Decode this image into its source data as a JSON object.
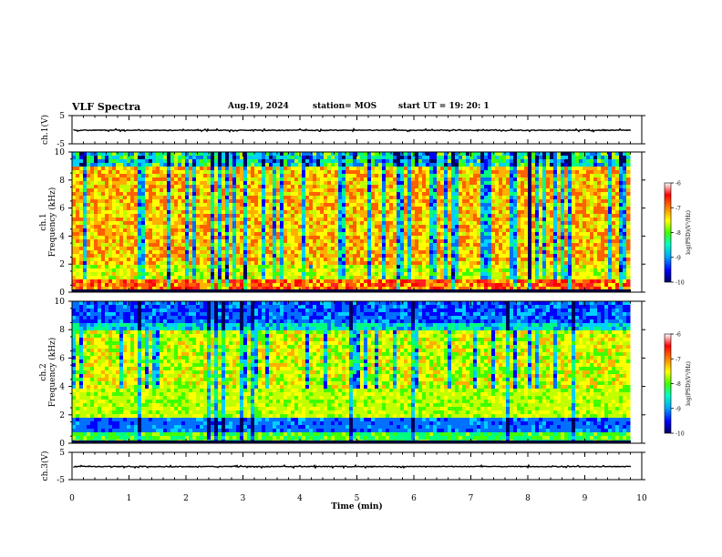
{
  "header": {
    "title": "VLF Spectra",
    "date": "Aug.19, 2024",
    "station": "station= MOS",
    "start": "start  UT =   19: 20: 1"
  },
  "colors": {
    "scale": [
      "#000060",
      "#0000ff",
      "#0070ff",
      "#00d0ff",
      "#00ff80",
      "#40ff00",
      "#c0ff00",
      "#ffff00",
      "#ffb000",
      "#ff6000",
      "#ff2020",
      "#ff0000"
    ],
    "trace": "#000000",
    "background": "#ffffff"
  },
  "chart_data": [
    {
      "type": "line",
      "name": "ch1-waveform",
      "ylabel": "ch.1(V)",
      "ylim": [
        -5,
        5
      ],
      "yticks": [
        "5",
        "-5"
      ],
      "level": -0.2,
      "xlim": [
        0,
        10
      ]
    },
    {
      "type": "heatmap",
      "name": "ch1-spectrogram",
      "ylabel": "ch.1 Frequency (kHz)",
      "ylabel_line1": "ch.1",
      "ylabel_line2": "Frequency (kHz)",
      "ylim": [
        0,
        10
      ],
      "yticks": [
        "0",
        "2",
        "4",
        "6",
        "8",
        "10"
      ],
      "xlim": [
        0,
        9.8
      ],
      "dominant_band_khz": [
        2,
        9
      ],
      "colorbar": {
        "label": "log(PSD)(V²/Hz)",
        "min": -10,
        "max": -6,
        "ticks": [
          "-6",
          "-7",
          "-8",
          "-9",
          "-10"
        ]
      }
    },
    {
      "type": "heatmap",
      "name": "ch2-spectrogram",
      "ylabel": "ch.2 Frequency (kHz)",
      "ylabel_line1": "ch.2",
      "ylabel_line2": "Frequency (kHz)",
      "ylim": [
        0,
        10
      ],
      "yticks": [
        "0",
        "2",
        "4",
        "6",
        "8",
        "10"
      ],
      "xlim": [
        0,
        9.8
      ],
      "dominant_band_khz": [
        4,
        8
      ],
      "colorbar": {
        "label": "log(PSD)(V²/Hz)",
        "min": -10,
        "max": -6,
        "ticks": [
          "-6",
          "-7",
          "-8",
          "-9",
          "-10"
        ]
      }
    },
    {
      "type": "line",
      "name": "ch3-waveform",
      "ylabel": "ch.3(V)",
      "ylim": [
        -5,
        5
      ],
      "yticks": [
        "5",
        "-5"
      ],
      "level": -0.2,
      "xlim": [
        0,
        10
      ]
    }
  ],
  "xaxis": {
    "label": "Time  (min)",
    "ticks": [
      "0",
      "1",
      "2",
      "3",
      "4",
      "5",
      "6",
      "7",
      "8",
      "9",
      "10"
    ],
    "range": [
      0,
      10
    ]
  }
}
